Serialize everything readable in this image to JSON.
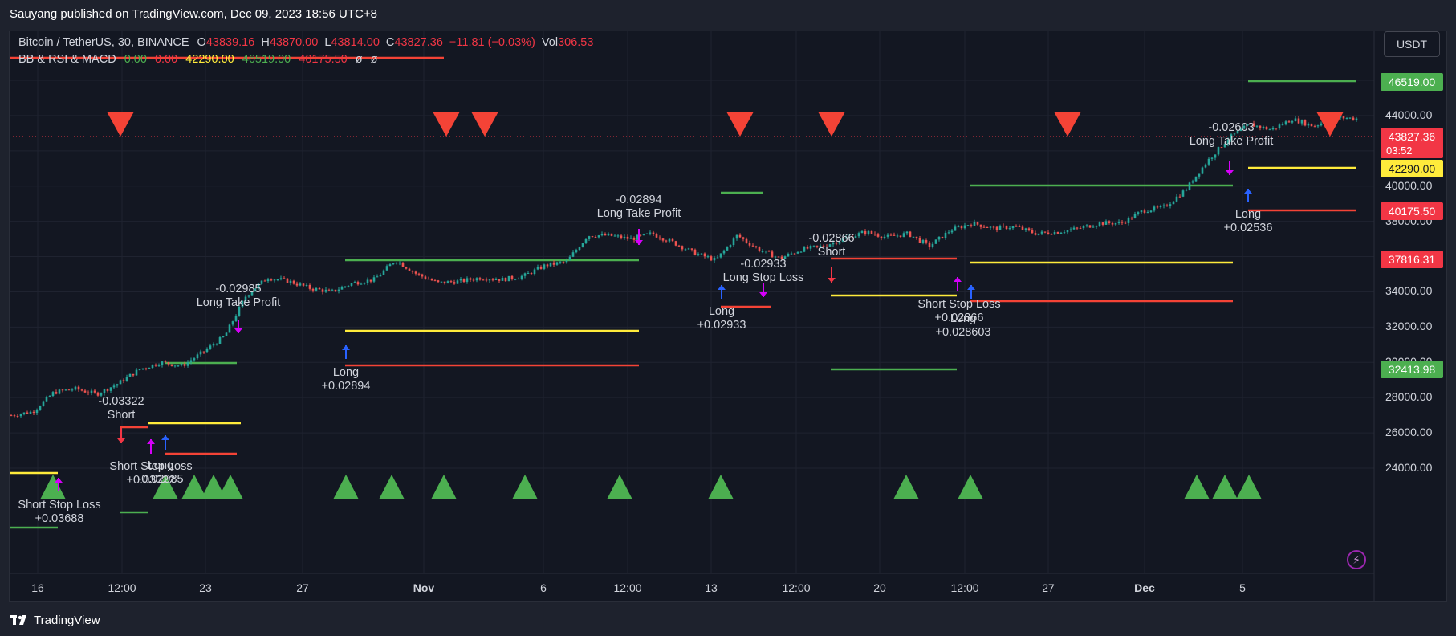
{
  "header": {
    "published": "Sauyang published on TradingView.com, Dec 09, 2023 18:56 UTC+8"
  },
  "legend": {
    "symbol": "Bitcoin / TetherUS, 30, BINANCE",
    "o_label": "O",
    "o_value": "43839.16",
    "h_label": "H",
    "h_value": "43870.00",
    "l_label": "L",
    "l_value": "43814.00",
    "c_label": "C",
    "c_value": "43827.36",
    "change": "−11.81 (−0.03%)",
    "vol_label": "Vol",
    "vol_value": "306.53",
    "indicator_name": "BB & RSI & MACD",
    "ind_v1": "0.00",
    "ind_v2": "0.00",
    "ind_v3": "42290.00",
    "ind_v4": "46519.00",
    "ind_v5": "40175.50",
    "ind_v6": "ø",
    "ind_v7": "ø"
  },
  "currency_button": "USDT",
  "price_tags": {
    "upper": "46519.00",
    "last": "43827.36",
    "countdown": "03:52",
    "yellow": "42290.00",
    "lower": "40175.50",
    "stop": "37816.31",
    "green_low": "32413.98"
  },
  "y_axis": [
    "46000.00",
    "44000.00",
    "42000.00",
    "40000.00",
    "38000.00",
    "36000.00",
    "34000.00",
    "32000.00",
    "30000.00",
    "28000.00",
    "26000.00",
    "24000.00"
  ],
  "x_axis": [
    "16",
    "12:00",
    "23",
    "27",
    "Nov",
    "6",
    "12:00",
    "13",
    "12:00",
    "20",
    "12:00",
    "27",
    "Dec",
    "5"
  ],
  "annotations": [
    {
      "text1": "-0.03322",
      "text2": "Short"
    },
    {
      "text1": "Short Stop Loss",
      "text2": "+0.03688"
    },
    {
      "text1": "Short Stop Loss",
      "text2": "+0.03322"
    },
    {
      "text1": "Long",
      "text2": "-0.02985"
    },
    {
      "text1": "-0.02985",
      "text2": "Long Take Profit"
    },
    {
      "text1": "Long",
      "text2": "+0.02894"
    },
    {
      "text1": "-0.02894",
      "text2": "Long Take Profit"
    },
    {
      "text1": "-0.02933",
      "text2": "Long Stop Loss"
    },
    {
      "text1": "Long",
      "text2": "+0.02933"
    },
    {
      "text1": "-0.02866",
      "text2": "Short"
    },
    {
      "text1": "Short Stop Loss",
      "text2": "+0.02866"
    },
    {
      "text1": "Long",
      "text2": "+0.028603"
    },
    {
      "text1": "-0.02603",
      "text2": "Long Take Profit"
    },
    {
      "text1": "Long",
      "text2": "+0.02536"
    }
  ],
  "footer": {
    "brand": "TradingView"
  },
  "colors": {
    "bg": "#131722",
    "up": "#26a69a",
    "down": "#ef5350",
    "green": "#4caf50",
    "red": "#f44336",
    "yellow": "#ffeb3b",
    "magenta": "#d500f9",
    "blue": "#2962ff"
  },
  "chart_data": {
    "type": "candlestick",
    "symbol": "BTC/USDT",
    "ylim": [
      23000,
      47000
    ],
    "series": [
      {
        "name": "close",
        "values": [
          27000,
          27200,
          28300,
          28500,
          28200,
          28800,
          29600,
          30000,
          29800,
          30600,
          31500,
          33800,
          34800,
          34600,
          34200,
          34000,
          34500,
          34700,
          35800,
          35000,
          34500,
          34600,
          34800,
          34700,
          34900,
          35500,
          35700,
          37200,
          37200,
          37000,
          37300,
          36800,
          36200,
          35800,
          37200,
          36400,
          35900,
          36400,
          36600,
          37000,
          37400,
          37100,
          37300,
          36600,
          37500,
          37900,
          37600,
          37700,
          37300,
          37400,
          37600,
          37900,
          37900,
          38600,
          38800,
          39800,
          41400,
          42700,
          43500,
          43200,
          43800,
          43400,
          43900,
          43827
        ]
      }
    ]
  }
}
